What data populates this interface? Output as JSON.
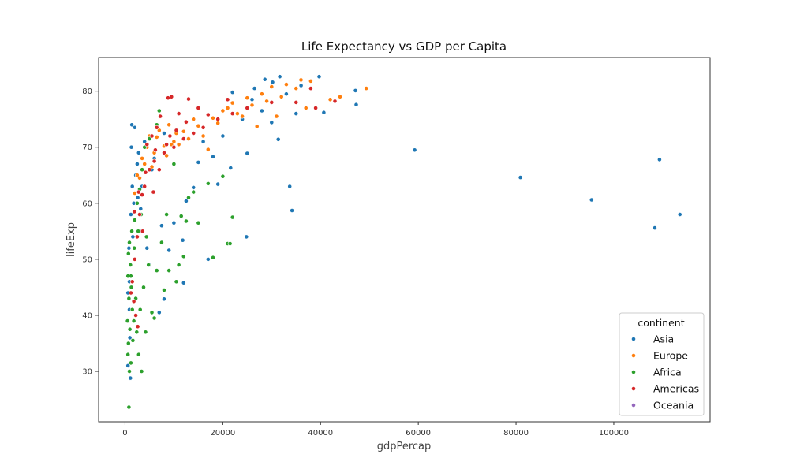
{
  "chart_data": {
    "type": "scatter",
    "title": "Life Expectancy vs GDP per Capita",
    "xlabel": "gdpPercap",
    "ylabel": "lifeExp",
    "xlim": [
      -5400,
      119700
    ],
    "ylim": [
      21,
      86
    ],
    "xticks": [
      0,
      20000,
      40000,
      60000,
      80000,
      100000
    ],
    "yticks": [
      30,
      40,
      50,
      60,
      70,
      80
    ],
    "grid": false,
    "legend": {
      "title": "continent",
      "placement": "bottom-right"
    },
    "series": [
      {
        "name": "Asia",
        "color": "#1f77b4",
        "points": [
          [
            59265,
            69.5
          ],
          [
            80894,
            64.6
          ],
          [
            95458,
            60.6
          ],
          [
            108382,
            55.6
          ],
          [
            109348,
            67.8
          ],
          [
            113523,
            58.0
          ],
          [
            39724,
            82.6
          ],
          [
            31656,
            82.6
          ],
          [
            28604,
            82.1
          ],
          [
            30200,
            81.6
          ],
          [
            26500,
            80.5
          ],
          [
            22000,
            79.8
          ],
          [
            36023,
            81.0
          ],
          [
            47143,
            80.1
          ],
          [
            47306,
            77.6
          ],
          [
            40675,
            76.2
          ],
          [
            35000,
            76.0
          ],
          [
            33000,
            79.5
          ],
          [
            31350,
            71.4
          ],
          [
            33692,
            63.0
          ],
          [
            34167,
            58.7
          ],
          [
            25000,
            68.9
          ],
          [
            24841,
            54.0
          ],
          [
            21600,
            66.3
          ],
          [
            20000,
            72.0
          ],
          [
            18000,
            68.3
          ],
          [
            19000,
            63.4
          ],
          [
            17000,
            50.0
          ],
          [
            12000,
            45.8
          ],
          [
            8000,
            42.9
          ],
          [
            14000,
            62.8
          ],
          [
            10000,
            56.5
          ],
          [
            12500,
            60.4
          ],
          [
            11800,
            53.4
          ],
          [
            9000,
            51.6
          ],
          [
            7000,
            40.5
          ],
          [
            5000,
            49.0
          ],
          [
            3000,
            55.0
          ],
          [
            1500,
            63.0
          ],
          [
            2500,
            67.0
          ],
          [
            1200,
            58.0
          ],
          [
            800,
            52.0
          ],
          [
            700,
            47.0
          ],
          [
            600,
            44.0
          ],
          [
            900,
            41.0
          ],
          [
            500,
            39.0
          ],
          [
            1000,
            36.0
          ],
          [
            1100,
            28.8
          ],
          [
            600,
            31.0
          ],
          [
            2000,
            73.5
          ],
          [
            4000,
            71.0
          ],
          [
            6000,
            68.0
          ],
          [
            8000,
            72.5
          ],
          [
            3500,
            63.0
          ],
          [
            15000,
            67.3
          ],
          [
            24000,
            75.0
          ],
          [
            26000,
            78.5
          ],
          [
            28000,
            76.5
          ],
          [
            30000,
            74.4
          ],
          [
            1800,
            60.0
          ],
          [
            2200,
            65.0
          ],
          [
            1300,
            70.0
          ],
          [
            2800,
            69.0
          ],
          [
            5500,
            66.0
          ],
          [
            3200,
            59.0
          ],
          [
            4500,
            52.0
          ],
          [
            7500,
            56.0
          ],
          [
            1600,
            54.0
          ],
          [
            900,
            46.0
          ],
          [
            2600,
            61.0
          ],
          [
            16000,
            71.0
          ],
          [
            1400,
            74.0
          ]
        ]
      },
      {
        "name": "Europe",
        "color": "#ff7f0e",
        "points": [
          [
            49357,
            80.5
          ],
          [
            44000,
            79.0
          ],
          [
            42000,
            78.5
          ],
          [
            38000,
            81.8
          ],
          [
            36000,
            82.0
          ],
          [
            33000,
            81.2
          ],
          [
            30000,
            80.8
          ],
          [
            28000,
            79.5
          ],
          [
            25000,
            78.8
          ],
          [
            22000,
            77.9
          ],
          [
            20000,
            76.5
          ],
          [
            18000,
            75.2
          ],
          [
            15000,
            73.8
          ],
          [
            12000,
            72.8
          ],
          [
            10000,
            71.0
          ],
          [
            8000,
            70.2
          ],
          [
            6000,
            69.0
          ],
          [
            4000,
            67.0
          ],
          [
            3000,
            64.5
          ],
          [
            2000,
            61.8
          ],
          [
            5000,
            72.0
          ],
          [
            7000,
            73.0
          ],
          [
            9000,
            74.0
          ],
          [
            11000,
            70.5
          ],
          [
            13000,
            71.5
          ],
          [
            16000,
            72.0
          ],
          [
            19000,
            74.3
          ],
          [
            23000,
            76.0
          ],
          [
            26000,
            77.5
          ],
          [
            29000,
            78.2
          ],
          [
            32000,
            79.0
          ],
          [
            35000,
            80.5
          ],
          [
            27000,
            73.7
          ],
          [
            24000,
            75.5
          ],
          [
            21000,
            77.0
          ],
          [
            17000,
            69.6
          ],
          [
            14000,
            75.0
          ],
          [
            6500,
            71.8
          ],
          [
            8500,
            68.5
          ],
          [
            10500,
            72.5
          ],
          [
            37000,
            77.0
          ],
          [
            31000,
            75.5
          ],
          [
            12500,
            74.4
          ],
          [
            9500,
            70.5
          ],
          [
            5500,
            66.5
          ],
          [
            4500,
            70.0
          ],
          [
            3500,
            68.0
          ],
          [
            2500,
            65.0
          ]
        ]
      },
      {
        "name": "Africa",
        "color": "#2ca02c",
        "points": [
          [
            800,
            23.6
          ],
          [
            900,
            30.0
          ],
          [
            1200,
            31.5
          ],
          [
            600,
            33.0
          ],
          [
            700,
            35.0
          ],
          [
            1000,
            37.5
          ],
          [
            500,
            39.0
          ],
          [
            1500,
            41.0
          ],
          [
            800,
            43.0
          ],
          [
            1300,
            45.0
          ],
          [
            600,
            47.0
          ],
          [
            1100,
            49.0
          ],
          [
            700,
            51.0
          ],
          [
            900,
            53.0
          ],
          [
            1400,
            55.0
          ],
          [
            2000,
            57.0
          ],
          [
            2500,
            60.0
          ],
          [
            3000,
            62.5
          ],
          [
            3500,
            66.0
          ],
          [
            4000,
            70.0
          ],
          [
            5000,
            71.5
          ],
          [
            6500,
            74.0
          ],
          [
            7000,
            76.5
          ],
          [
            3400,
            30.0
          ],
          [
            2800,
            33.0
          ],
          [
            4200,
            37.0
          ],
          [
            5500,
            40.5
          ],
          [
            6000,
            39.5
          ],
          [
            8000,
            44.5
          ],
          [
            9000,
            48.0
          ],
          [
            10500,
            46.0
          ],
          [
            11000,
            49.0
          ],
          [
            12000,
            50.5
          ],
          [
            12500,
            56.8
          ],
          [
            13000,
            61.0
          ],
          [
            14000,
            62.0
          ],
          [
            15000,
            56.5
          ],
          [
            18000,
            50.3
          ],
          [
            21000,
            52.8
          ],
          [
            21500,
            52.8
          ],
          [
            22000,
            57.5
          ],
          [
            20000,
            64.8
          ],
          [
            17000,
            63.5
          ],
          [
            11500,
            57.7
          ],
          [
            10000,
            67.0
          ],
          [
            8500,
            58.0
          ],
          [
            7500,
            53.0
          ],
          [
            6500,
            48.0
          ],
          [
            4800,
            49.0
          ],
          [
            3800,
            45.0
          ],
          [
            2200,
            43.0
          ],
          [
            1800,
            39.0
          ],
          [
            1600,
            35.5
          ],
          [
            2400,
            37.0
          ],
          [
            3100,
            41.0
          ],
          [
            1200,
            47.0
          ],
          [
            1900,
            52.0
          ],
          [
            2700,
            55.0
          ],
          [
            3300,
            58.0
          ],
          [
            4400,
            54.0
          ]
        ]
      },
      {
        "name": "Americas",
        "color": "#d62728",
        "points": [
          [
            42952,
            78.2
          ],
          [
            39000,
            77.0
          ],
          [
            35000,
            78.0
          ],
          [
            30000,
            78.0
          ],
          [
            25000,
            77.0
          ],
          [
            22000,
            76.0
          ],
          [
            19000,
            75.0
          ],
          [
            16000,
            73.5
          ],
          [
            14000,
            72.5
          ],
          [
            12000,
            71.5
          ],
          [
            10000,
            70.0
          ],
          [
            8000,
            69.0
          ],
          [
            6000,
            67.5
          ],
          [
            5000,
            66.0
          ],
          [
            4000,
            63.0
          ],
          [
            3000,
            58.0
          ],
          [
            2500,
            54.0
          ],
          [
            2000,
            50.0
          ],
          [
            1500,
            46.0
          ],
          [
            1800,
            42.5
          ],
          [
            2200,
            40.0
          ],
          [
            2600,
            38.0
          ],
          [
            9500,
            79.0
          ],
          [
            8800,
            78.8
          ],
          [
            6500,
            73.5
          ],
          [
            7200,
            75.5
          ],
          [
            4500,
            70.5
          ],
          [
            5500,
            72.0
          ],
          [
            11000,
            76.0
          ],
          [
            13000,
            78.6
          ],
          [
            17000,
            75.8
          ],
          [
            21000,
            78.5
          ],
          [
            38000,
            80.5
          ],
          [
            3500,
            61.5
          ],
          [
            4200,
            65.5
          ],
          [
            5800,
            62.0
          ],
          [
            7000,
            66.0
          ],
          [
            6200,
            69.5
          ],
          [
            8500,
            70.5
          ],
          [
            9200,
            72.0
          ],
          [
            10500,
            73.0
          ],
          [
            12500,
            74.5
          ],
          [
            15000,
            77.0
          ],
          [
            1900,
            58.5
          ],
          [
            2800,
            62.0
          ],
          [
            3600,
            55.0
          ],
          [
            1200,
            44.0
          ]
        ]
      },
      {
        "name": "Oceania",
        "color": "#9467bd",
        "points": []
      }
    ]
  }
}
